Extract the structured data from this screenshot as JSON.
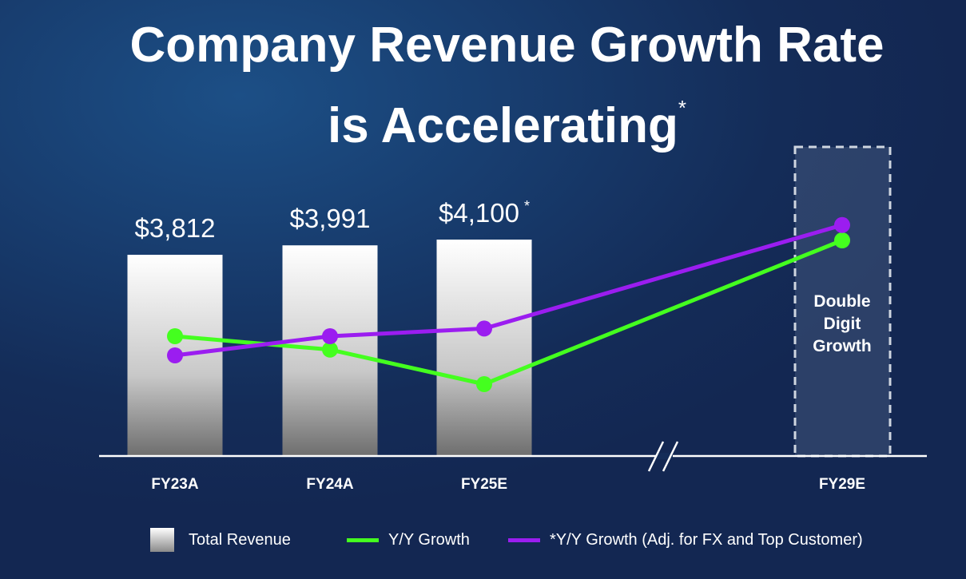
{
  "title": {
    "line1": "Company Revenue Growth Rate",
    "line2": "is Accelerating",
    "asterisk": "*"
  },
  "chart_data": {
    "type": "bar",
    "categories": [
      "FY23A",
      "FY24A",
      "FY25E",
      "FY29E"
    ],
    "series": [
      {
        "name": "Total Revenue",
        "kind": "bar",
        "values": [
          3812,
          3991,
          4100,
          null
        ],
        "labels": [
          "$3,812",
          "$3,991",
          "$4,100",
          null
        ],
        "label_asterisk": [
          false,
          false,
          true,
          false
        ]
      },
      {
        "name": "Y/Y Growth",
        "kind": "line",
        "color": "#44ff1f",
        "values": [
          0.5,
          0.43,
          0.25,
          1.0
        ]
      },
      {
        "name": "*Y/Y Growth (Adj. for FX and Top Customer)",
        "kind": "line",
        "color": "#9b1df0",
        "values": [
          0.4,
          0.5,
          0.54,
          1.08
        ]
      }
    ],
    "projection": {
      "category": "FY29E",
      "text_lines": [
        "Double",
        "Digit",
        "Growth"
      ]
    },
    "axis_break": true,
    "growth_scale_note": "growth values are relative heights (no axis printed)",
    "ylim_revenue": [
      0,
      4100
    ]
  },
  "legend": {
    "items": [
      {
        "label": "Total Revenue",
        "type": "box"
      },
      {
        "label": "Y/Y Growth",
        "type": "line",
        "color": "#44ff1f"
      },
      {
        "label": "*Y/Y Growth (Adj. for FX and Top Customer)",
        "type": "line",
        "color": "#9b1df0"
      }
    ]
  },
  "colors": {
    "background": "#173a6b",
    "green": "#44ff1f",
    "purple": "#9b1df0"
  }
}
